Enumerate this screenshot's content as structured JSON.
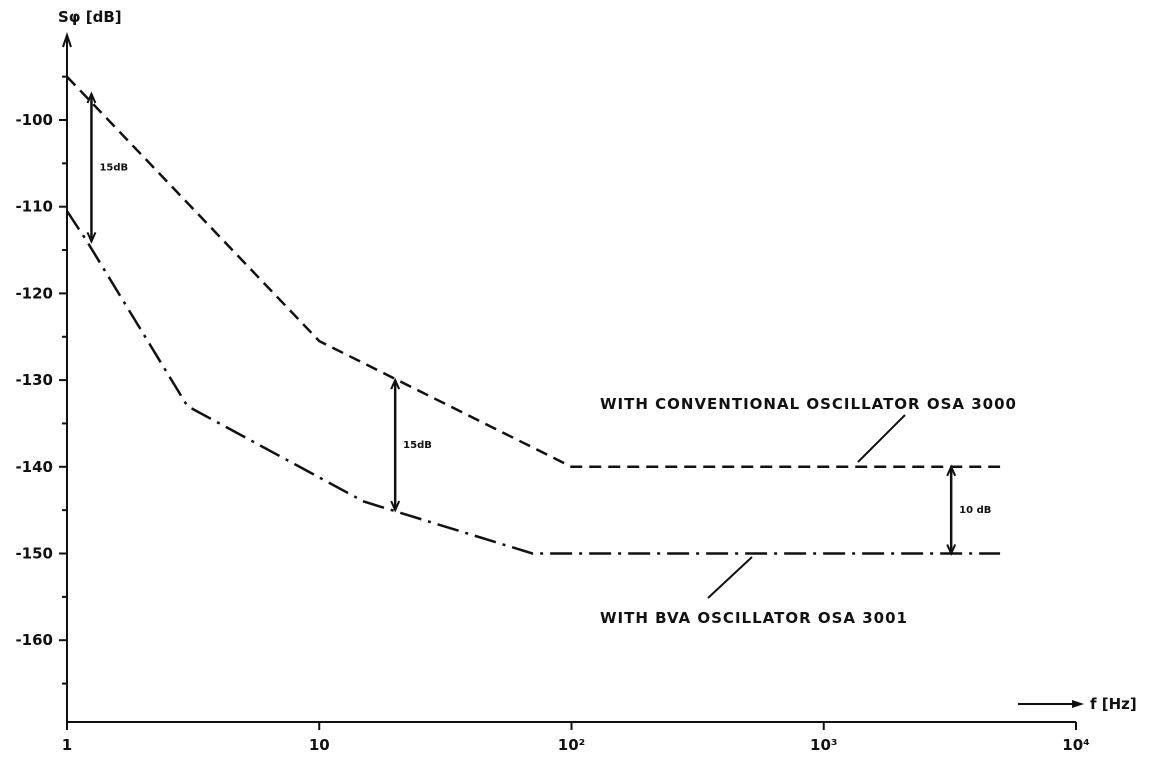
{
  "chart_data": {
    "type": "line",
    "ylabel": "Sφ [dB]",
    "xlabel": "f [Hz]",
    "x_scale": "log",
    "xlim": [
      1,
      10000
    ],
    "ylim": [
      -170,
      -93
    ],
    "grid": false,
    "x_ticks": [
      1,
      10,
      100,
      1000,
      10000
    ],
    "x_tick_labels": [
      "1",
      "10",
      "10²",
      "10³",
      "10⁴"
    ],
    "y_ticks": [
      -100,
      -110,
      -120,
      -130,
      -140,
      -150,
      -160
    ],
    "y_tick_labels": [
      "-100",
      "-110",
      "-120",
      "-130",
      "-140",
      "-150",
      "-160"
    ],
    "series": [
      {
        "name": "WITH CONVENTIONAL OSCILLATOR OSA 3000",
        "style": "dashed",
        "x": [
          1,
          10,
          100,
          5000
        ],
        "y": [
          -95,
          -125.5,
          -140,
          -140
        ]
      },
      {
        "name": "WITH BVA OSCILLATOR OSA 3001",
        "style": "dash-dot",
        "x": [
          1,
          1.2,
          3,
          15,
          70,
          5000
        ],
        "y": [
          -110.5,
          -114,
          -133,
          -144,
          -150,
          -150
        ]
      }
    ],
    "annotations": [
      {
        "text": "15dB",
        "x": 1.25,
        "y_top": -97,
        "y_bottom": -114
      },
      {
        "text": "15dB",
        "x": 20,
        "y_top": -130,
        "y_bottom": -145
      },
      {
        "text": "10 dB",
        "x": 3200,
        "y_top": -140,
        "y_bottom": -150
      }
    ]
  }
}
